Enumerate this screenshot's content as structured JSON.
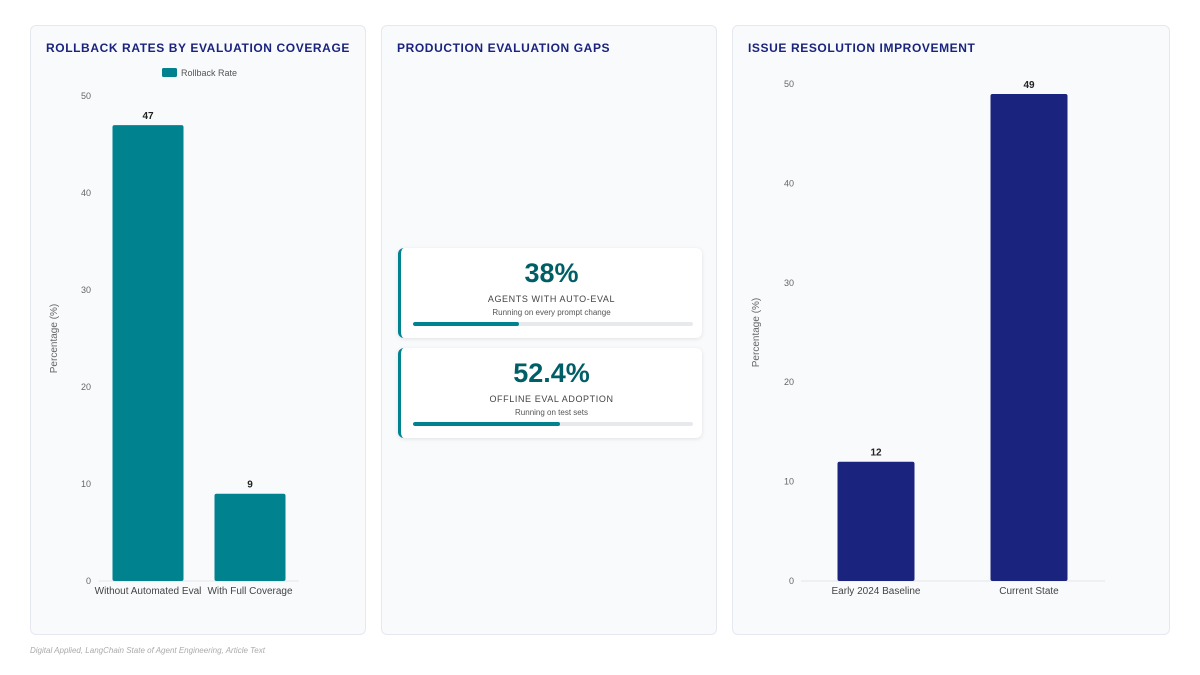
{
  "chart_data": [
    {
      "type": "bar",
      "title": "ROLLBACK RATES BY EVALUATION COVERAGE",
      "categories": [
        "Without Automated Eval",
        "With Full Coverage"
      ],
      "series": [
        {
          "name": "Rollback Rate",
          "values": [
            47,
            9
          ]
        }
      ],
      "xlabel": "",
      "ylabel": "Percentage (%)",
      "ylim": [
        0,
        50
      ],
      "yticks": [
        0,
        10,
        20,
        30,
        40,
        50
      ],
      "legend": "top-center",
      "grid": false,
      "color": "#00838f"
    },
    {
      "type": "bar",
      "title": "ISSUE RESOLUTION IMPROVEMENT",
      "categories": [
        "Early 2024 Baseline",
        "Current State"
      ],
      "series": [
        {
          "values": [
            12,
            49
          ]
        }
      ],
      "xlabel": "",
      "ylabel": "Percentage (%)",
      "ylim": [
        0,
        50
      ],
      "yticks": [
        0,
        10,
        20,
        30,
        40,
        50
      ],
      "legend": "none",
      "grid": false,
      "color": "#1a237e"
    }
  ],
  "gaps": {
    "title": "PRODUCTION EVALUATION GAPS",
    "cards": [
      {
        "value": "38%",
        "label": "AGENTS WITH AUTO-EVAL",
        "sub": "Running on every prompt change",
        "progress": 0.38
      },
      {
        "value": "52.4%",
        "label": "OFFLINE EVAL ADOPTION",
        "sub": "Running on test sets",
        "progress": 0.524
      }
    ]
  },
  "colors": {
    "teal": "#00838f",
    "navy": "#1a237e",
    "stat_text": "#005f66"
  },
  "source": "Digital Applied, LangChain State of Agent Engineering, Article Text"
}
